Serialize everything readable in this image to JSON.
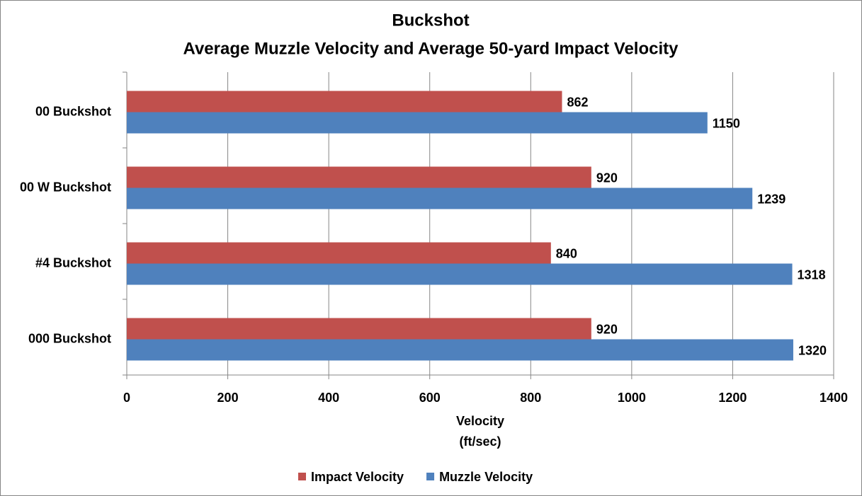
{
  "chart_data": {
    "type": "hbar",
    "title": "Buckshot",
    "subtitle": "Average Muzzle Velocity and Average 50-yard Impact Velocity",
    "categories": [
      "00 Buckshot",
      "00 W Buckshot",
      "#4 Buckshot",
      "000 Buckshot"
    ],
    "series": [
      {
        "name": "Impact Velocity",
        "color": "#c0504d",
        "values": [
          862,
          920,
          840,
          920
        ]
      },
      {
        "name": "Muzzle Velocity",
        "color": "#4f81bd",
        "values": [
          1150,
          1239,
          1318,
          1320
        ]
      }
    ],
    "xlabel": [
      "Velocity",
      "(ft/sec)"
    ],
    "xlim": [
      0,
      1400
    ],
    "xticks": [
      0,
      200,
      400,
      600,
      800,
      1000,
      1200,
      1400
    ],
    "grid": true,
    "legend": "bottom"
  }
}
